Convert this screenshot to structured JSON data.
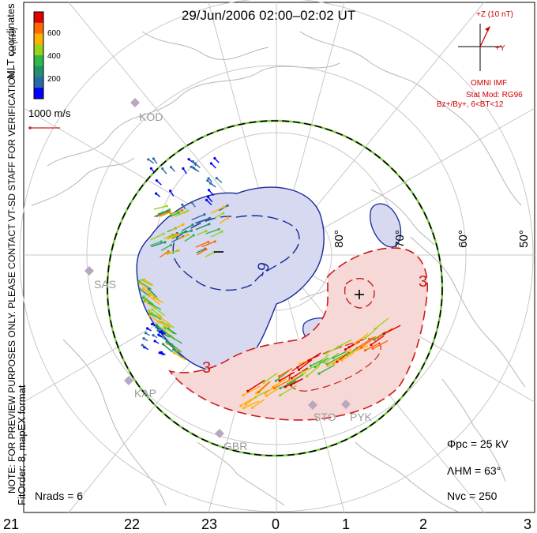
{
  "title": "29/Jun/2006 02:00–02:02 UT",
  "coords_label": "MLT coordinates",
  "colorbar": {
    "label": "Vel [m/s]",
    "ticks": [
      "600",
      "400",
      "200"
    ],
    "colors": [
      "#e00000",
      "#ff6a00",
      "#ffb000",
      "#9ad21a",
      "#2eb84a",
      "#23906e",
      "#2a6aa8",
      "#0000ff"
    ]
  },
  "scale_vector": "1000 m/s",
  "watermark": "NOTE: FOR PREVIEW PURPOSES ONLY. PLEASE CONTACT VT-SD STAFF FOR VERIFICATION.",
  "fit_info": "FitOrder: 8, mapEX format",
  "imf": {
    "axis_z": "+Z (10 nT)",
    "axis_y": "+Y",
    "source": "OMNI IMF",
    "stat_mod": "Stat Mod: RG96",
    "stat_bin": "Bz+/By+, 6<BT<12"
  },
  "stats": {
    "phi_pc": "Φpc = 25 kV",
    "lambda_hm": "ΛHM = 63°",
    "n_vc": "Nvc = 250",
    "n_rads": "Nrads = 6"
  },
  "lat_labels": [
    "80°",
    "70°",
    "60°",
    "50°"
  ],
  "mlt_labels": [
    "21",
    "22",
    "23",
    "0",
    "1",
    "2",
    "3"
  ],
  "radars": [
    "KOD",
    "SAS",
    "KAP",
    "GBR",
    "STO",
    "PYK"
  ],
  "potential": {
    "min_marker": "−",
    "max_marker": "+",
    "neg_contour_label": "-9",
    "pos_contour_label": "3",
    "pos_contour_label_2": "3"
  }
}
